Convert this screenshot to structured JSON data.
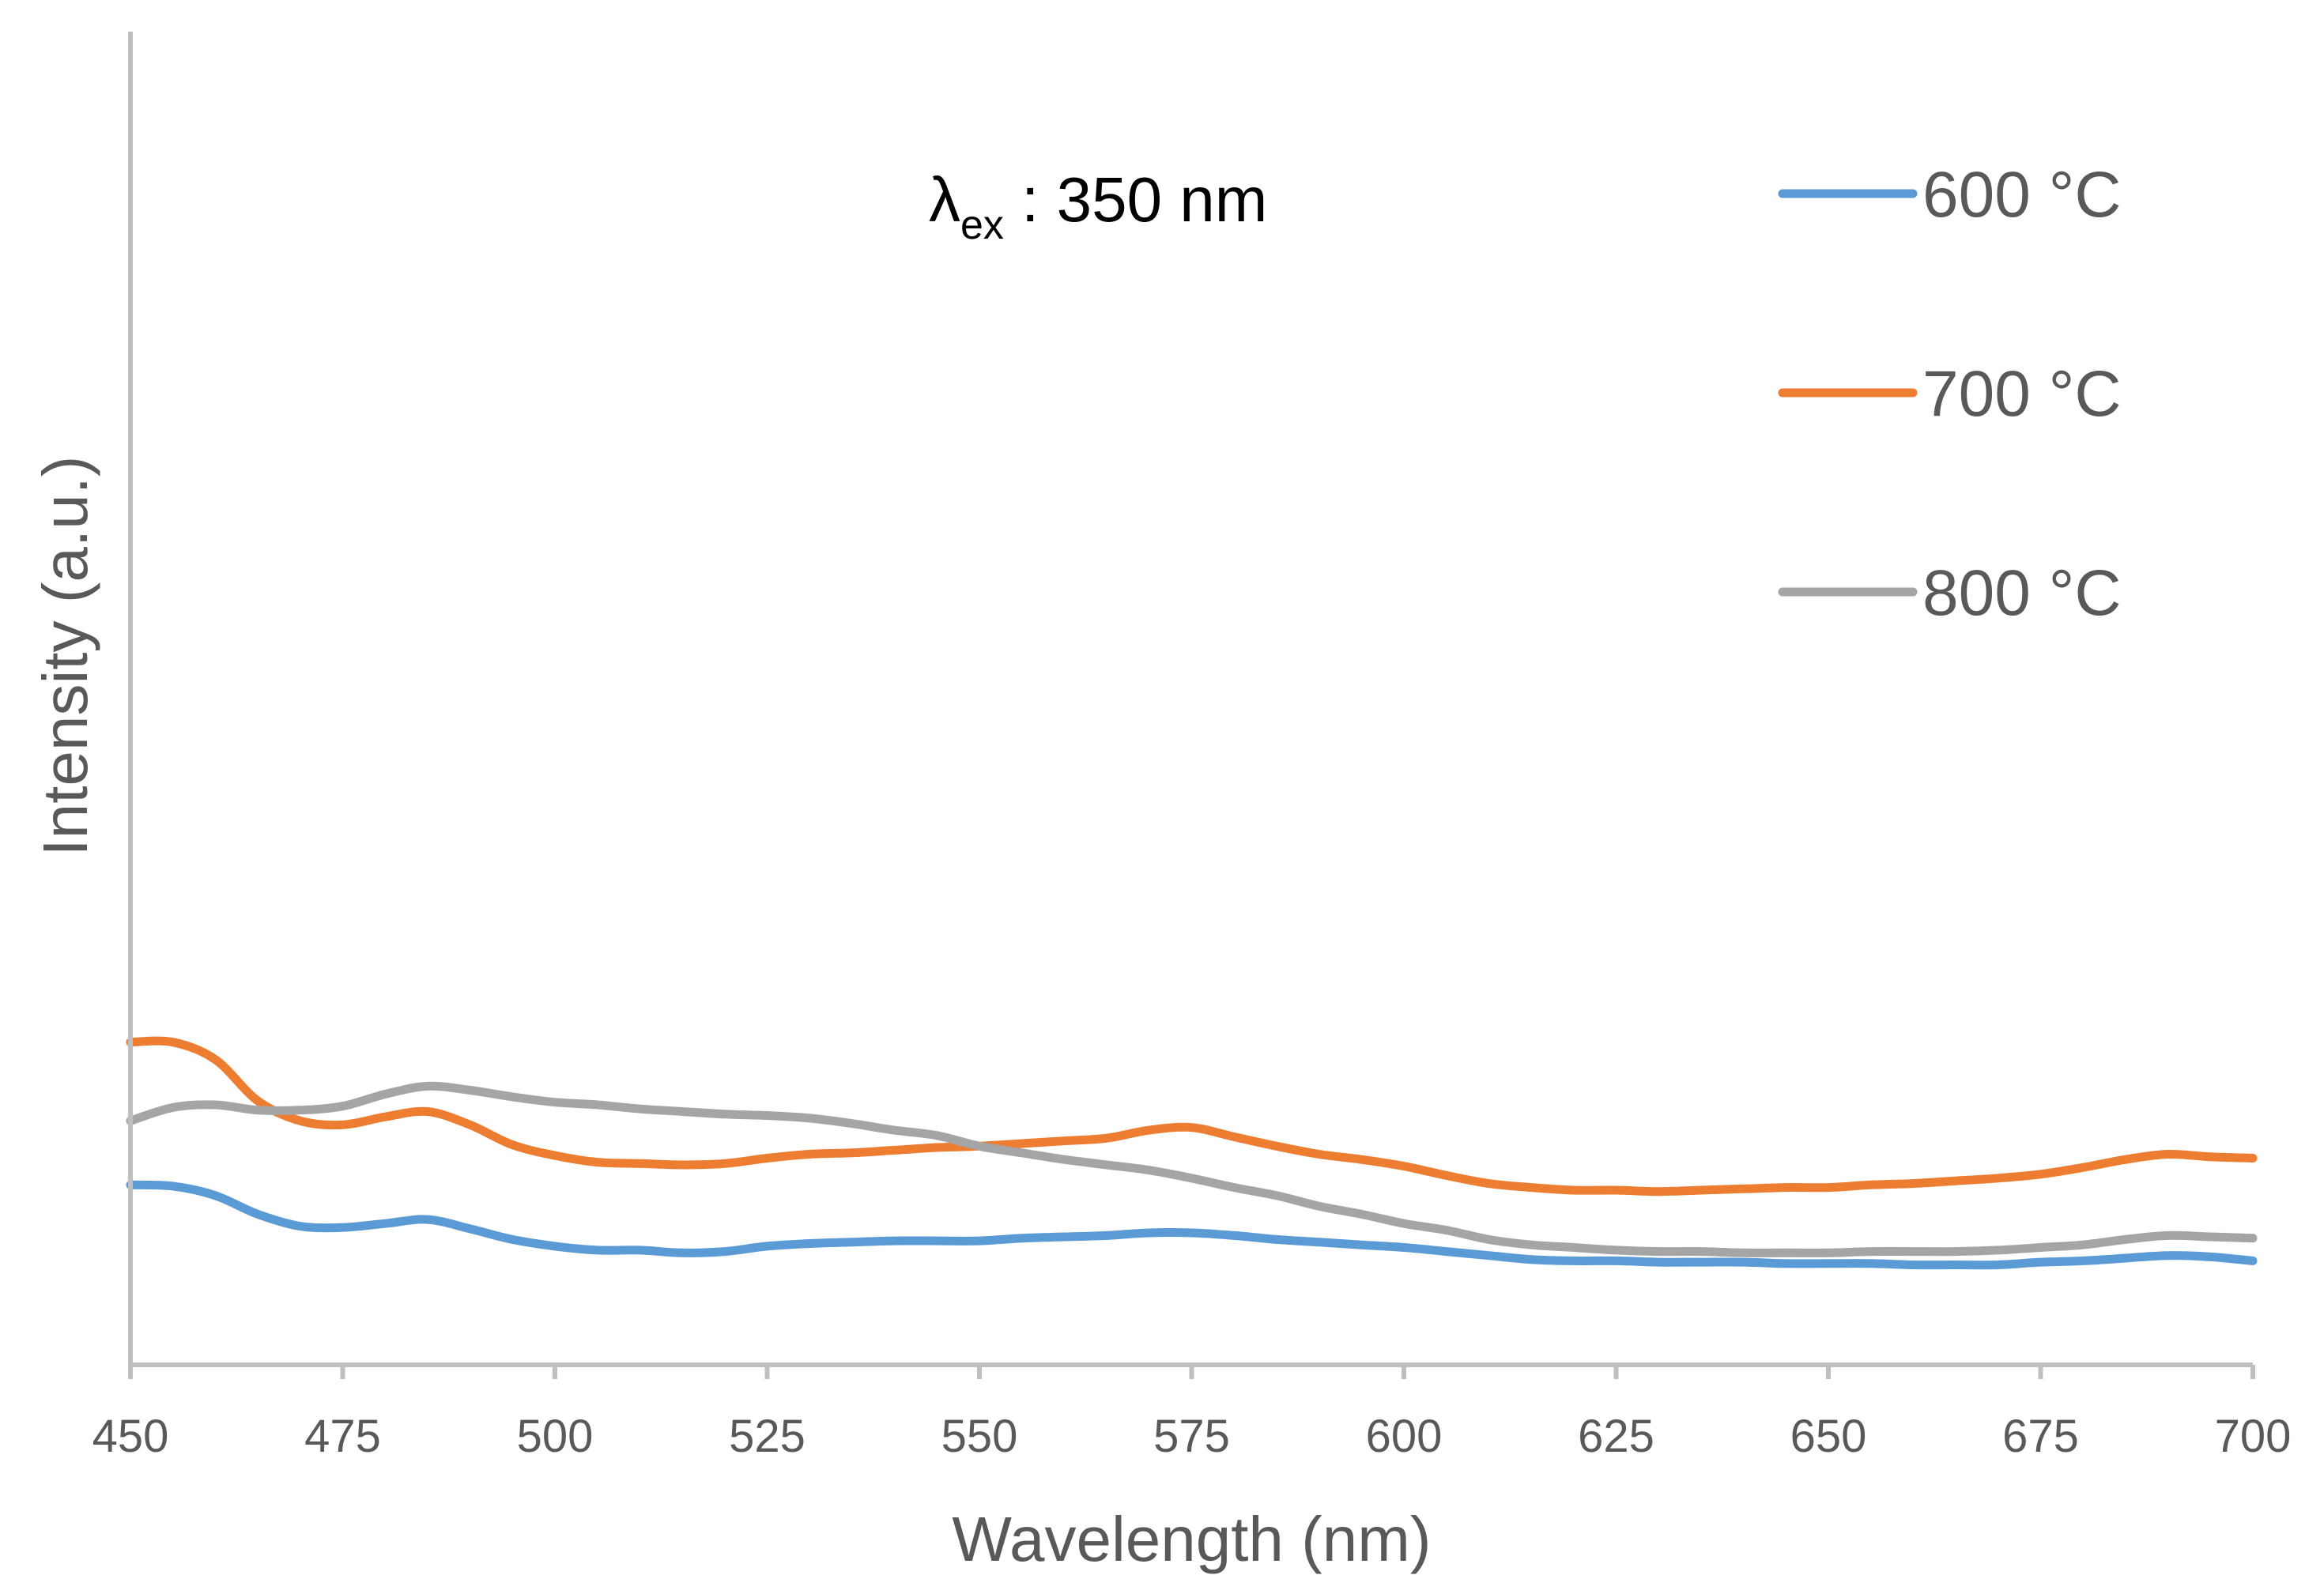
{
  "chart_data": {
    "type": "line",
    "title": "",
    "xlabel": "Wavelength (nm)",
    "ylabel": "Intensity (a.u.)",
    "xlim": [
      450,
      700
    ],
    "ylim": [
      0,
      100
    ],
    "x_ticks": [
      450,
      475,
      500,
      525,
      550,
      575,
      600,
      625,
      650,
      675,
      700
    ],
    "y_ticks_visible": false,
    "grid": false,
    "legend_position": "top-right",
    "annotation": {
      "symbol": "λ",
      "subscript": "ex",
      "text": " : 350 nm"
    },
    "series": [
      {
        "name": "600 °C",
        "color": "#5B9BD5",
        "x": [
          450,
          455,
          460,
          465,
          470,
          475,
          480,
          485,
          490,
          495,
          500,
          505,
          510,
          515,
          520,
          525,
          530,
          535,
          540,
          545,
          550,
          555,
          560,
          565,
          570,
          575,
          580,
          585,
          590,
          595,
          600,
          605,
          610,
          615,
          620,
          625,
          630,
          635,
          640,
          645,
          650,
          655,
          660,
          665,
          670,
          675,
          680,
          685,
          690,
          695,
          700
        ],
        "y": [
          13.5,
          13.4,
          12.7,
          11.3,
          10.4,
          10.3,
          10.6,
          10.9,
          10.2,
          9.4,
          8.9,
          8.6,
          8.6,
          8.4,
          8.5,
          8.9,
          9.1,
          9.2,
          9.3,
          9.3,
          9.3,
          9.5,
          9.6,
          9.7,
          9.9,
          9.9,
          9.7,
          9.4,
          9.2,
          9.0,
          8.8,
          8.5,
          8.2,
          7.9,
          7.8,
          7.8,
          7.7,
          7.7,
          7.7,
          7.6,
          7.6,
          7.6,
          7.5,
          7.5,
          7.5,
          7.7,
          7.8,
          8.0,
          8.2,
          8.1,
          7.8
        ]
      },
      {
        "name": "700 °C",
        "color": "#ED7D31",
        "x": [
          450,
          455,
          460,
          465,
          470,
          475,
          480,
          485,
          490,
          495,
          500,
          505,
          510,
          515,
          520,
          525,
          530,
          535,
          540,
          545,
          550,
          555,
          560,
          565,
          570,
          575,
          580,
          585,
          590,
          595,
          600,
          605,
          610,
          615,
          620,
          625,
          630,
          635,
          640,
          645,
          650,
          655,
          660,
          665,
          670,
          675,
          680,
          685,
          690,
          695,
          700
        ],
        "y": [
          24.2,
          24.2,
          22.9,
          19.8,
          18.3,
          18.0,
          18.6,
          19.0,
          18.0,
          16.5,
          15.7,
          15.2,
          15.1,
          15.0,
          15.1,
          15.5,
          15.8,
          15.9,
          16.1,
          16.3,
          16.4,
          16.6,
          16.8,
          17.0,
          17.6,
          17.8,
          17.1,
          16.4,
          15.8,
          15.4,
          14.9,
          14.2,
          13.6,
          13.3,
          13.1,
          13.1,
          13.0,
          13.1,
          13.2,
          13.3,
          13.3,
          13.5,
          13.6,
          13.8,
          14.0,
          14.3,
          14.8,
          15.4,
          15.8,
          15.6,
          15.5
        ]
      },
      {
        "name": "800 °C",
        "color": "#A5A5A5",
        "x": [
          450,
          455,
          460,
          465,
          470,
          475,
          480,
          485,
          490,
          495,
          500,
          505,
          510,
          515,
          520,
          525,
          530,
          535,
          540,
          545,
          550,
          555,
          560,
          565,
          570,
          575,
          580,
          585,
          590,
          595,
          600,
          605,
          610,
          615,
          620,
          625,
          630,
          635,
          640,
          645,
          650,
          655,
          660,
          665,
          670,
          675,
          680,
          685,
          690,
          695,
          700
        ],
        "y": [
          18.3,
          19.3,
          19.5,
          19.1,
          19.1,
          19.4,
          20.3,
          20.9,
          20.6,
          20.1,
          19.7,
          19.5,
          19.2,
          19.0,
          18.8,
          18.7,
          18.5,
          18.1,
          17.6,
          17.2,
          16.4,
          15.9,
          15.4,
          15.0,
          14.6,
          14.0,
          13.3,
          12.7,
          11.9,
          11.3,
          10.6,
          10.1,
          9.4,
          9.0,
          8.8,
          8.6,
          8.5,
          8.5,
          8.4,
          8.4,
          8.4,
          8.5,
          8.5,
          8.5,
          8.6,
          8.8,
          9.0,
          9.4,
          9.7,
          9.6,
          9.5
        ]
      }
    ]
  }
}
